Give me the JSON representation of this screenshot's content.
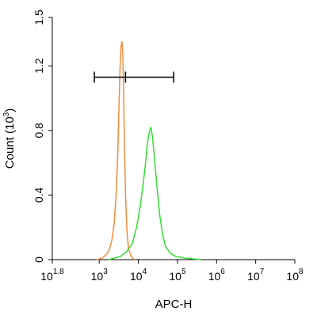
{
  "chart_data": {
    "type": "line",
    "title": "",
    "xlabel": "APC-H",
    "ylabel": "Count (10^3)",
    "ylabel_parts": {
      "main": "Count (10",
      "exp": "3",
      "close": ")"
    },
    "x_scale": "log",
    "xlim_log10": [
      1.8,
      8
    ],
    "ylim": [
      0,
      1.5
    ],
    "grid": false,
    "legend": "none",
    "x_ticks": [
      {
        "base": "10",
        "exp": "1.8",
        "log": 1.8
      },
      {
        "base": "10",
        "exp": "3",
        "log": 3
      },
      {
        "base": "10",
        "exp": "4",
        "log": 4
      },
      {
        "base": "10",
        "exp": "5",
        "log": 5
      },
      {
        "base": "10",
        "exp": "6",
        "log": 6
      },
      {
        "base": "10",
        "exp": "7",
        "log": 7
      },
      {
        "base": "10",
        "exp": "8",
        "log": 8
      }
    ],
    "y_ticks": [
      {
        "label": "0",
        "value": 0
      },
      {
        "label": "0.4",
        "value": 0.4
      },
      {
        "label": "0.8",
        "value": 0.8
      },
      {
        "label": "1.2",
        "value": 1.2
      },
      {
        "label": "1.5",
        "value": 1.5
      }
    ],
    "series": [
      {
        "color": "#f08c3c",
        "points": [
          [
            870,
            0.0
          ],
          [
            1200,
            0.01
          ],
          [
            1500,
            0.03
          ],
          [
            1800,
            0.06
          ],
          [
            2100,
            0.12
          ],
          [
            2400,
            0.22
          ],
          [
            2700,
            0.4
          ],
          [
            3000,
            0.68
          ],
          [
            3200,
            0.95
          ],
          [
            3400,
            1.18
          ],
          [
            3600,
            1.32
          ],
          [
            3800,
            1.35
          ],
          [
            4000,
            1.28
          ],
          [
            4200,
            1.05
          ],
          [
            4400,
            0.72
          ],
          [
            4700,
            0.4
          ],
          [
            5100,
            0.18
          ],
          [
            5600,
            0.07
          ],
          [
            6500,
            0.02
          ],
          [
            8000,
            0.0
          ]
        ]
      },
      {
        "color": "#33dd33",
        "points": [
          [
            1700,
            0.0
          ],
          [
            2500,
            0.01
          ],
          [
            3500,
            0.02
          ],
          [
            5000,
            0.05
          ],
          [
            7000,
            0.1
          ],
          [
            9000,
            0.2
          ],
          [
            11000,
            0.32
          ],
          [
            13000,
            0.45
          ],
          [
            15000,
            0.58
          ],
          [
            17000,
            0.72
          ],
          [
            19000,
            0.79
          ],
          [
            21000,
            0.82
          ],
          [
            23000,
            0.76
          ],
          [
            26000,
            0.62
          ],
          [
            30000,
            0.45
          ],
          [
            35000,
            0.28
          ],
          [
            42000,
            0.15
          ],
          [
            50000,
            0.08
          ],
          [
            65000,
            0.04
          ],
          [
            90000,
            0.02
          ],
          [
            150000,
            0.01
          ],
          [
            250000,
            0.005
          ],
          [
            400000,
            0.0
          ]
        ]
      }
    ],
    "gate": {
      "x_start": 750,
      "x_mid": 4700,
      "x_end": 80000,
      "y": 1.13
    }
  }
}
